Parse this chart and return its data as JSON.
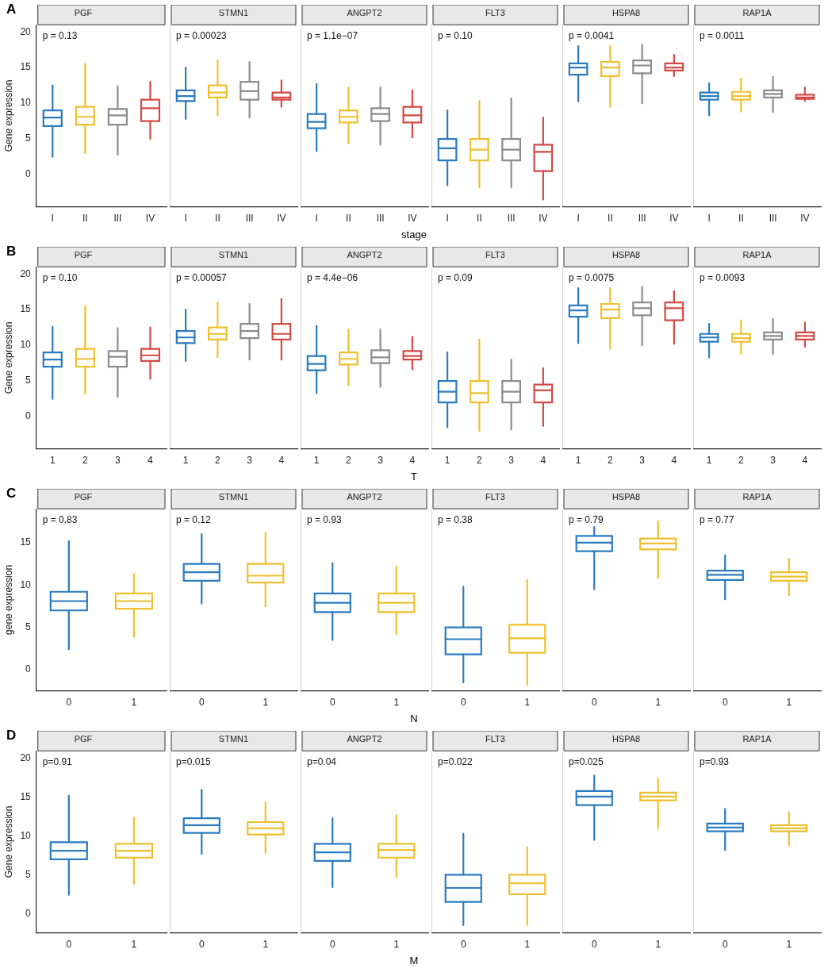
{
  "chart_data": [
    {
      "type": "box",
      "title": "PGF",
      "annotations": [
        "A",
        "p = 0.13"
      ],
      "ylabel": "Gene expression",
      "categories": [
        "I",
        "II",
        "III",
        "IV"
      ],
      "colors": [
        "#2a7bc0",
        "#eec02e",
        "#8c8c8c",
        "#d44a44"
      ],
      "ylim": [
        -4.5,
        21
      ],
      "yticks": [
        0,
        5,
        10,
        15,
        20
      ],
      "boxes": [
        {
          "low": 2.5,
          "q1": 6.8,
          "median": 8,
          "q3": 9,
          "high": 12.5
        },
        {
          "low": 3,
          "q1": 7,
          "median": 8.1,
          "q3": 9.5,
          "high": 15.5
        },
        {
          "low": 2.8,
          "q1": 7,
          "median": 8.3,
          "q3": 9.2,
          "high": 12.4
        },
        {
          "low": 5,
          "q1": 7.5,
          "median": 9.3,
          "q3": 10.5,
          "high": 13
        }
      ]
    },
    {
      "type": "box",
      "title": "STMN1",
      "annotations": [
        "p = 0.00023"
      ],
      "tick_labels": "x",
      "categories": [
        "I",
        "II",
        "III",
        "IV"
      ],
      "colors": [
        "#2a7bc0",
        "#eec02e",
        "#8c8c8c",
        "#d44a44"
      ],
      "ylim": [
        -4.5,
        21
      ],
      "yticks": [
        0,
        5,
        10,
        15,
        20
      ],
      "boxes": [
        {
          "low": 7.8,
          "q1": 10.3,
          "median": 11,
          "q3": 11.8,
          "high": 15
        },
        {
          "low": 8.3,
          "q1": 10.8,
          "median": 11.5,
          "q3": 12.5,
          "high": 16
        },
        {
          "low": 8,
          "q1": 10.5,
          "median": 11.7,
          "q3": 13,
          "high": 15.8
        },
        {
          "low": 9.5,
          "q1": 10.5,
          "median": 10.8,
          "q3": 11.5,
          "high": 13.2
        }
      ]
    },
    {
      "type": "box",
      "title": "ANGPT2",
      "annotations": [
        "p = 1.1e−07"
      ],
      "tick_labels": "x",
      "categories": [
        "I",
        "II",
        "III",
        "IV"
      ],
      "colors": [
        "#2a7bc0",
        "#eec02e",
        "#8c8c8c",
        "#d44a44"
      ],
      "ylim": [
        -4.5,
        21
      ],
      "yticks": [
        0,
        5,
        10,
        15,
        20
      ],
      "boxes": [
        {
          "low": 3.3,
          "q1": 6.5,
          "median": 7.4,
          "q3": 8.5,
          "high": 12.7
        },
        {
          "low": 4.4,
          "q1": 7.3,
          "median": 8.1,
          "q3": 9,
          "high": 12.2
        },
        {
          "low": 4.2,
          "q1": 7.5,
          "median": 8.5,
          "q3": 9.3,
          "high": 12.2
        },
        {
          "low": 5.2,
          "q1": 7.3,
          "median": 8.3,
          "q3": 9.5,
          "high": 11.8
        }
      ]
    },
    {
      "type": "box",
      "title": "FLT3",
      "annotations": [
        "p = 0.10"
      ],
      "xlabel": "stage",
      "tick_labels": "x",
      "categories": [
        "I",
        "II",
        "III",
        "IV"
      ],
      "colors": [
        "#2a7bc0",
        "#eec02e",
        "#8c8c8c",
        "#d44a44"
      ],
      "ylim": [
        -4.5,
        21
      ],
      "yticks": [
        0,
        5,
        10,
        15,
        20
      ],
      "boxes": [
        {
          "low": -1.5,
          "q1": 2,
          "median": 3.7,
          "q3": 5,
          "high": 9
        },
        {
          "low": -1.8,
          "q1": 2,
          "median": 3.5,
          "q3": 5,
          "high": 10.3
        },
        {
          "low": -1.8,
          "q1": 2,
          "median": 3.5,
          "q3": 5,
          "high": 10.7
        },
        {
          "low": -3.5,
          "q1": 0.5,
          "median": 3.2,
          "q3": 4.2,
          "high": 8
        }
      ]
    },
    {
      "type": "box",
      "title": "HSPA8",
      "annotations": [
        "p = 0.0041"
      ],
      "tick_labels": "x",
      "categories": [
        "I",
        "II",
        "III",
        "IV"
      ],
      "colors": [
        "#2a7bc0",
        "#eec02e",
        "#8c8c8c",
        "#d44a44"
      ],
      "ylim": [
        -4.5,
        21
      ],
      "yticks": [
        0,
        5,
        10,
        15,
        20
      ],
      "boxes": [
        {
          "low": 10.3,
          "q1": 14,
          "median": 15,
          "q3": 15.6,
          "high": 18
        },
        {
          "low": 9.5,
          "q1": 13.8,
          "median": 15,
          "q3": 15.8,
          "high": 18
        },
        {
          "low": 10,
          "q1": 14.2,
          "median": 15.3,
          "q3": 16,
          "high": 18.2
        },
        {
          "low": 13.8,
          "q1": 14.6,
          "median": 15,
          "q3": 15.6,
          "high": 16.8
        }
      ]
    },
    {
      "type": "box",
      "title": "RAP1A",
      "annotations": [
        "p = 0.0011"
      ],
      "tick_labels": "x",
      "categories": [
        "I",
        "II",
        "III",
        "IV"
      ],
      "colors": [
        "#2a7bc0",
        "#eec02e",
        "#8c8c8c",
        "#d44a44"
      ],
      "ylim": [
        -4.5,
        21
      ],
      "yticks": [
        0,
        5,
        10,
        15,
        20
      ],
      "boxes": [
        {
          "low": 8.3,
          "q1": 10.5,
          "median": 11,
          "q3": 11.5,
          "high": 12.8
        },
        {
          "low": 8.8,
          "q1": 10.5,
          "median": 11,
          "q3": 11.6,
          "high": 13.5
        },
        {
          "low": 8.8,
          "q1": 10.8,
          "median": 11.3,
          "q3": 11.8,
          "high": 13.7
        },
        {
          "low": 10.3,
          "q1": 10.6,
          "median": 10.8,
          "q3": 11.2,
          "high": 12.2
        }
      ]
    },
    {
      "type": "box",
      "title": "PGF",
      "annotations": [
        "B",
        "p = 0.10"
      ],
      "ylabel": "Gene expression",
      "categories": [
        "1",
        "2",
        "3",
        "4"
      ],
      "colors": [
        "#2a7bc0",
        "#eec02e",
        "#8c8c8c",
        "#d44a44"
      ],
      "ylim": [
        -4.5,
        21
      ],
      "yticks": [
        0,
        5,
        10,
        15,
        20
      ],
      "boxes": [
        {
          "low": 2.5,
          "q1": 7,
          "median": 8,
          "q3": 9,
          "high": 12.6
        },
        {
          "low": 3.2,
          "q1": 7,
          "median": 8.1,
          "q3": 9.5,
          "high": 15.5
        },
        {
          "low": 2.8,
          "q1": 7,
          "median": 8.4,
          "q3": 9.2,
          "high": 12.4
        },
        {
          "low": 5.3,
          "q1": 7.8,
          "median": 8.6,
          "q3": 9.5,
          "high": 12.5
        }
      ]
    },
    {
      "type": "box",
      "title": "STMN1",
      "annotations": [
        "p = 0.00057"
      ],
      "tick_labels": "x",
      "categories": [
        "1",
        "2",
        "3",
        "4"
      ],
      "colors": [
        "#2a7bc0",
        "#eec02e",
        "#8c8c8c",
        "#d44a44"
      ],
      "ylim": [
        -4.5,
        21
      ],
      "yticks": [
        0,
        5,
        10,
        15,
        20
      ],
      "boxes": [
        {
          "low": 7.8,
          "q1": 10.3,
          "median": 11.1,
          "q3": 12,
          "high": 15
        },
        {
          "low": 8.3,
          "q1": 10.8,
          "median": 11.6,
          "q3": 12.5,
          "high": 16
        },
        {
          "low": 8,
          "q1": 11,
          "median": 12,
          "q3": 13,
          "high": 15.8
        },
        {
          "low": 8,
          "q1": 10.8,
          "median": 11.6,
          "q3": 13,
          "high": 16.5
        }
      ]
    },
    {
      "type": "box",
      "title": "ANGPT2",
      "annotations": [
        "p = 4.4e−06"
      ],
      "tick_labels": "x",
      "categories": [
        "1",
        "2",
        "3",
        "4"
      ],
      "colors": [
        "#2a7bc0",
        "#eec02e",
        "#8c8c8c",
        "#d44a44"
      ],
      "ylim": [
        -4.5,
        21
      ],
      "yticks": [
        0,
        5,
        10,
        15,
        20
      ],
      "boxes": [
        {
          "low": 3.3,
          "q1": 6.5,
          "median": 7.4,
          "q3": 8.5,
          "high": 12.7
        },
        {
          "low": 4.4,
          "q1": 7.3,
          "median": 8.1,
          "q3": 9,
          "high": 12.2
        },
        {
          "low": 4.2,
          "q1": 7.5,
          "median": 8.3,
          "q3": 9.3,
          "high": 12.2
        },
        {
          "low": 6.6,
          "q1": 8,
          "median": 8.5,
          "q3": 9.2,
          "high": 11.2
        }
      ]
    },
    {
      "type": "box",
      "title": "FLT3",
      "annotations": [
        "p = 0.09"
      ],
      "xlabel": "T",
      "tick_labels": "x",
      "categories": [
        "1",
        "2",
        "3",
        "4"
      ],
      "colors": [
        "#2a7bc0",
        "#eec02e",
        "#8c8c8c",
        "#d44a44"
      ],
      "ylim": [
        -4.5,
        21
      ],
      "yticks": [
        0,
        5,
        10,
        15,
        20
      ],
      "boxes": [
        {
          "low": -1.5,
          "q1": 2,
          "median": 3.5,
          "q3": 5,
          "high": 9
        },
        {
          "low": -2,
          "q1": 2,
          "median": 3.3,
          "q3": 5,
          "high": 10.8
        },
        {
          "low": -1.8,
          "q1": 2,
          "median": 3.5,
          "q3": 5,
          "high": 8
        },
        {
          "low": -1.3,
          "q1": 2,
          "median": 3.7,
          "q3": 4.5,
          "high": 6.8
        }
      ]
    },
    {
      "type": "box",
      "title": "HSPA8",
      "annotations": [
        "p = 0.0075"
      ],
      "tick_labels": "x",
      "categories": [
        "1",
        "2",
        "3",
        "4"
      ],
      "colors": [
        "#2a7bc0",
        "#eec02e",
        "#8c8c8c",
        "#d44a44"
      ],
      "ylim": [
        -4.5,
        21
      ],
      "yticks": [
        0,
        5,
        10,
        15,
        20
      ],
      "boxes": [
        {
          "low": 10.3,
          "q1": 14,
          "median": 14.9,
          "q3": 15.6,
          "high": 18
        },
        {
          "low": 9.5,
          "q1": 13.8,
          "median": 15,
          "q3": 15.8,
          "high": 18
        },
        {
          "low": 10,
          "q1": 14.2,
          "median": 15.2,
          "q3": 16,
          "high": 18.2
        },
        {
          "low": 10.2,
          "q1": 13.5,
          "median": 15.2,
          "q3": 16,
          "high": 17.6
        }
      ]
    },
    {
      "type": "box",
      "title": "RAP1A",
      "annotations": [
        "p = 0.0093"
      ],
      "tick_labels": "x",
      "categories": [
        "1",
        "2",
        "3",
        "4"
      ],
      "colors": [
        "#2a7bc0",
        "#eec02e",
        "#8c8c8c",
        "#d44a44"
      ],
      "ylim": [
        -4.5,
        21
      ],
      "yticks": [
        0,
        5,
        10,
        15,
        20
      ],
      "boxes": [
        {
          "low": 8.3,
          "q1": 10.5,
          "median": 11.1,
          "q3": 11.6,
          "high": 13
        },
        {
          "low": 8.8,
          "q1": 10.5,
          "median": 11,
          "q3": 11.6,
          "high": 13.5
        },
        {
          "low": 8.8,
          "q1": 10.8,
          "median": 11.3,
          "q3": 11.8,
          "high": 13.7
        },
        {
          "low": 9.8,
          "q1": 10.8,
          "median": 11.3,
          "q3": 11.8,
          "high": 13.2
        }
      ]
    },
    {
      "type": "box",
      "title": "PGF",
      "annotations": [
        "C",
        "p = 0.83"
      ],
      "ylabel": "gene expression",
      "categories": [
        "0",
        "1"
      ],
      "colors": [
        "#2a7bc0",
        "#eec02e"
      ],
      "ylim": [
        -2.5,
        19
      ],
      "yticks": [
        0,
        5,
        10,
        15
      ],
      "boxes": [
        {
          "low": 2.4,
          "q1": 7,
          "median": 8.1,
          "q3": 9.2,
          "high": 15.2
        },
        {
          "low": 3.9,
          "q1": 7.2,
          "median": 8.1,
          "q3": 9,
          "high": 11.3
        }
      ]
    },
    {
      "type": "box",
      "title": "STMN1",
      "annotations": [
        "p = 0.12"
      ],
      "tick_labels": "x",
      "categories": [
        "0",
        "1"
      ],
      "colors": [
        "#2a7bc0",
        "#eec02e"
      ],
      "ylim": [
        -2.5,
        19
      ],
      "yticks": [
        0,
        5,
        10,
        15
      ],
      "boxes": [
        {
          "low": 7.8,
          "q1": 10.5,
          "median": 11.5,
          "q3": 12.5,
          "high": 16
        },
        {
          "low": 7.5,
          "q1": 10.3,
          "median": 11.1,
          "q3": 12.5,
          "high": 16.2
        }
      ]
    },
    {
      "type": "box",
      "title": "ANGPT2",
      "annotations": [
        "p = 0.93"
      ],
      "tick_labels": "x",
      "categories": [
        "0",
        "1"
      ],
      "colors": [
        "#2a7bc0",
        "#eec02e"
      ],
      "ylim": [
        -2.5,
        19
      ],
      "yticks": [
        0,
        5,
        10,
        15
      ],
      "boxes": [
        {
          "low": 3.5,
          "q1": 6.8,
          "median": 7.9,
          "q3": 9,
          "high": 12.6
        },
        {
          "low": 4.2,
          "q1": 6.8,
          "median": 7.9,
          "q3": 9,
          "high": 12.2
        }
      ]
    },
    {
      "type": "box",
      "title": "FLT3",
      "annotations": [
        "p = 0.38"
      ],
      "xlabel": "N",
      "tick_labels": "x",
      "categories": [
        "0",
        "1"
      ],
      "colors": [
        "#2a7bc0",
        "#eec02e"
      ],
      "ylim": [
        -2.5,
        19
      ],
      "yticks": [
        0,
        5,
        10,
        15
      ],
      "boxes": [
        {
          "low": -1.5,
          "q1": 1.8,
          "median": 3.6,
          "q3": 5,
          "high": 9.8
        },
        {
          "low": -1.8,
          "q1": 2,
          "median": 3.7,
          "q3": 5.3,
          "high": 10.6
        }
      ]
    },
    {
      "type": "box",
      "title": "HSPA8",
      "annotations": [
        "p = 0.79"
      ],
      "tick_labels": "x",
      "categories": [
        "0",
        "1"
      ],
      "colors": [
        "#2a7bc0",
        "#eec02e"
      ],
      "ylim": [
        -2.5,
        19
      ],
      "yticks": [
        0,
        5,
        10,
        15
      ],
      "boxes": [
        {
          "low": 9.5,
          "q1": 14,
          "median": 15,
          "q3": 15.8,
          "high": 18
        },
        {
          "low": 10.8,
          "q1": 14.2,
          "median": 14.9,
          "q3": 15.5,
          "high": 17.5
        }
      ]
    },
    {
      "type": "box",
      "title": "RAP1A",
      "annotations": [
        "p = 0.77"
      ],
      "tick_labels": "x",
      "categories": [
        "0",
        "1"
      ],
      "colors": [
        "#2a7bc0",
        "#eec02e"
      ],
      "ylim": [
        -2.5,
        19
      ],
      "yticks": [
        0,
        5,
        10,
        15
      ],
      "boxes": [
        {
          "low": 8.3,
          "q1": 10.6,
          "median": 11.2,
          "q3": 11.7,
          "high": 13.5
        },
        {
          "low": 8.8,
          "q1": 10.5,
          "median": 11,
          "q3": 11.5,
          "high": 13.1
        }
      ]
    },
    {
      "type": "box",
      "title": "PGF",
      "annotations": [
        "D",
        "p=0.91"
      ],
      "ylabel": "Gene expression",
      "categories": [
        "0",
        "1"
      ],
      "colors": [
        "#2a7bc0",
        "#eec02e"
      ],
      "ylim": [
        -2.5,
        21
      ],
      "yticks": [
        0,
        5,
        10,
        15,
        20
      ],
      "boxes": [
        {
          "low": 2.4,
          "q1": 7,
          "median": 8.1,
          "q3": 9.2,
          "high": 15.2
        },
        {
          "low": 3.8,
          "q1": 7.2,
          "median": 8.1,
          "q3": 9,
          "high": 12.4
        }
      ]
    },
    {
      "type": "box",
      "title": "STMN1",
      "annotations": [
        "p=0.015"
      ],
      "tick_labels": "x",
      "categories": [
        "0",
        "1"
      ],
      "colors": [
        "#2a7bc0",
        "#eec02e"
      ],
      "ylim": [
        -2.5,
        21
      ],
      "yticks": [
        0,
        5,
        10,
        15,
        20
      ],
      "boxes": [
        {
          "low": 7.7,
          "q1": 10.4,
          "median": 11.4,
          "q3": 12.3,
          "high": 16
        },
        {
          "low": 7.8,
          "q1": 10.2,
          "median": 11,
          "q3": 11.8,
          "high": 14.3
        }
      ]
    },
    {
      "type": "box",
      "title": "ANGPT2",
      "annotations": [
        "p=0.04"
      ],
      "tick_labels": "x",
      "categories": [
        "0",
        "1"
      ],
      "colors": [
        "#2a7bc0",
        "#eec02e"
      ],
      "ylim": [
        -2.5,
        21
      ],
      "yticks": [
        0,
        5,
        10,
        15,
        20
      ],
      "boxes": [
        {
          "low": 3.4,
          "q1": 6.8,
          "median": 7.9,
          "q3": 9,
          "high": 12.3
        },
        {
          "low": 4.7,
          "q1": 7.2,
          "median": 8.2,
          "q3": 9,
          "high": 12.7
        }
      ]
    },
    {
      "type": "box",
      "title": "FLT3",
      "annotations": [
        "p=0.022"
      ],
      "xlabel": "M",
      "tick_labels": "x",
      "categories": [
        "0",
        "1"
      ],
      "colors": [
        "#2a7bc0",
        "#eec02e"
      ],
      "ylim": [
        -2.5,
        21
      ],
      "yticks": [
        0,
        5,
        10,
        15,
        20
      ],
      "boxes": [
        {
          "low": -1.5,
          "q1": 1.5,
          "median": 3.3,
          "q3": 5,
          "high": 10.3
        },
        {
          "low": -1.5,
          "q1": 2.5,
          "median": 3.9,
          "q3": 5,
          "high": 8.6
        }
      ]
    },
    {
      "type": "box",
      "title": "HSPA8",
      "annotations": [
        "p=0.025"
      ],
      "tick_labels": "x",
      "categories": [
        "0",
        "1"
      ],
      "colors": [
        "#2a7bc0",
        "#eec02e"
      ],
      "ylim": [
        -2.5,
        21
      ],
      "yticks": [
        0,
        5,
        10,
        15,
        20
      ],
      "boxes": [
        {
          "low": 9.5,
          "q1": 14,
          "median": 15.1,
          "q3": 15.8,
          "high": 17.8
        },
        {
          "low": 11,
          "q1": 14.6,
          "median": 15.1,
          "q3": 15.6,
          "high": 17.4
        }
      ]
    },
    {
      "type": "box",
      "title": "RAP1A",
      "annotations": [
        "p=0.93"
      ],
      "tick_labels": "x",
      "categories": [
        "0",
        "1"
      ],
      "colors": [
        "#2a7bc0",
        "#eec02e"
      ],
      "ylim": [
        -2.5,
        21
      ],
      "yticks": [
        0,
        5,
        10,
        15,
        20
      ],
      "boxes": [
        {
          "low": 8.2,
          "q1": 10.6,
          "median": 11.1,
          "q3": 11.6,
          "high": 13.5
        },
        {
          "low": 8.8,
          "q1": 10.6,
          "median": 11,
          "q3": 11.4,
          "high": 13.1
        }
      ]
    }
  ]
}
